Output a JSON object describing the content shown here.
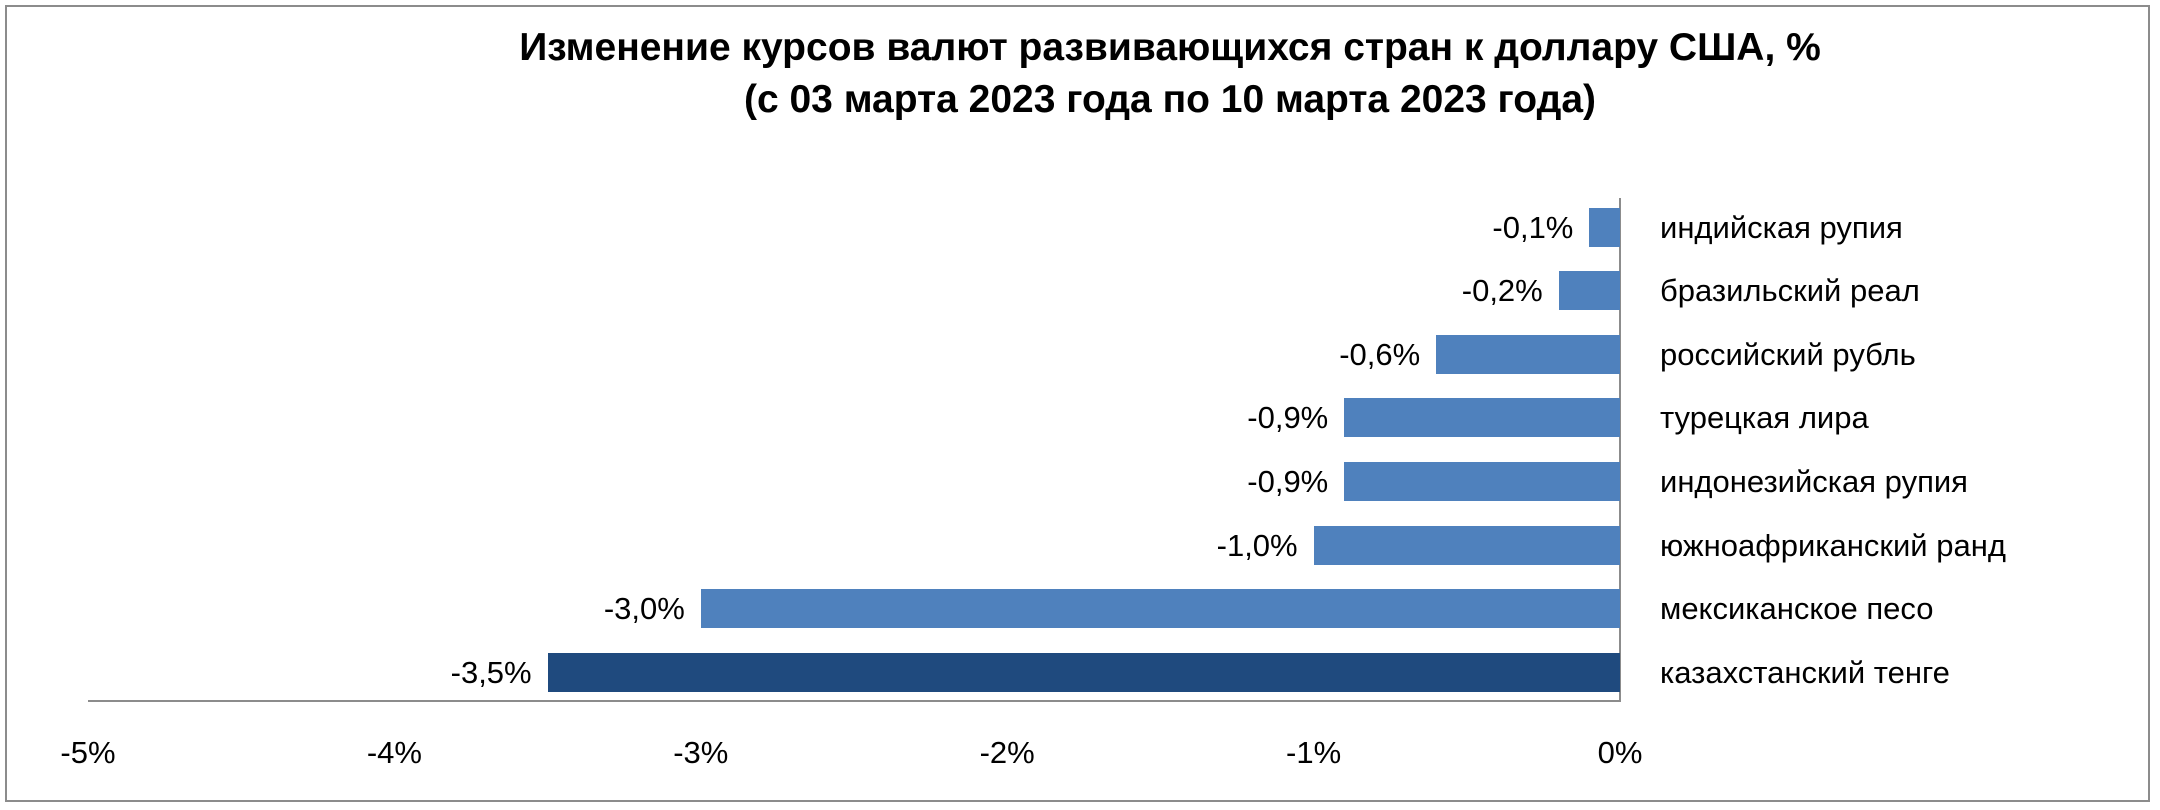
{
  "title": {
    "line1": "Изменение курсов валют развивающихся стран к доллару США, %",
    "line2": "(с 03 марта 2023 года по 10 марта 2023 года)"
  },
  "colors": {
    "bar": "#4F81BD",
    "highlight": "#1F4A7E",
    "axis": "#8C8C8C"
  },
  "axis": {
    "ticks": [
      "-5%",
      "-4%",
      "-3%",
      "-2%",
      "-1%",
      "0%"
    ]
  },
  "bars": [
    {
      "category": "индийская рупия",
      "label": "-0,1%"
    },
    {
      "category": "бразильский реал",
      "label": "-0,2%"
    },
    {
      "category": "российский рубль",
      "label": "-0,6%"
    },
    {
      "category": "турецкая лира",
      "label": "-0,9%"
    },
    {
      "category": "индонезийская рупия",
      "label": "-0,9%"
    },
    {
      "category": "южноафриканский ранд",
      "label": "-1,0%"
    },
    {
      "category": "мексиканское песо",
      "label": "-3,0%"
    },
    {
      "category": "казахстанский тенге",
      "label": "-3,5%"
    }
  ],
  "chart_data": {
    "type": "bar",
    "orientation": "horizontal",
    "title": "Изменение курсов валют развивающихся стран к доллару США, % (с 03 марта 2023 года по 10 марта 2023 года)",
    "categories": [
      "индийская рупия",
      "бразильский реал",
      "российский рубль",
      "турецкая лира",
      "индонезийская рупия",
      "южноафриканский ранд",
      "мексиканское песо",
      "казахстанский тенге"
    ],
    "values": [
      -0.1,
      -0.2,
      -0.6,
      -0.9,
      -0.9,
      -1.0,
      -3.0,
      -3.5
    ],
    "data_labels": [
      "-0,1%",
      "-0,2%",
      "-0,6%",
      "-0,9%",
      "-0,9%",
      "-1,0%",
      "-3,0%",
      "-3,5%"
    ],
    "highlighted_category": "казахстанский тенге",
    "xlabel": "",
    "ylabel": "",
    "xlim": [
      -5,
      0
    ],
    "xticks": [
      "-5%",
      "-4%",
      "-3%",
      "-2%",
      "-1%",
      "0%"
    ],
    "grid": false,
    "legend": null
  }
}
